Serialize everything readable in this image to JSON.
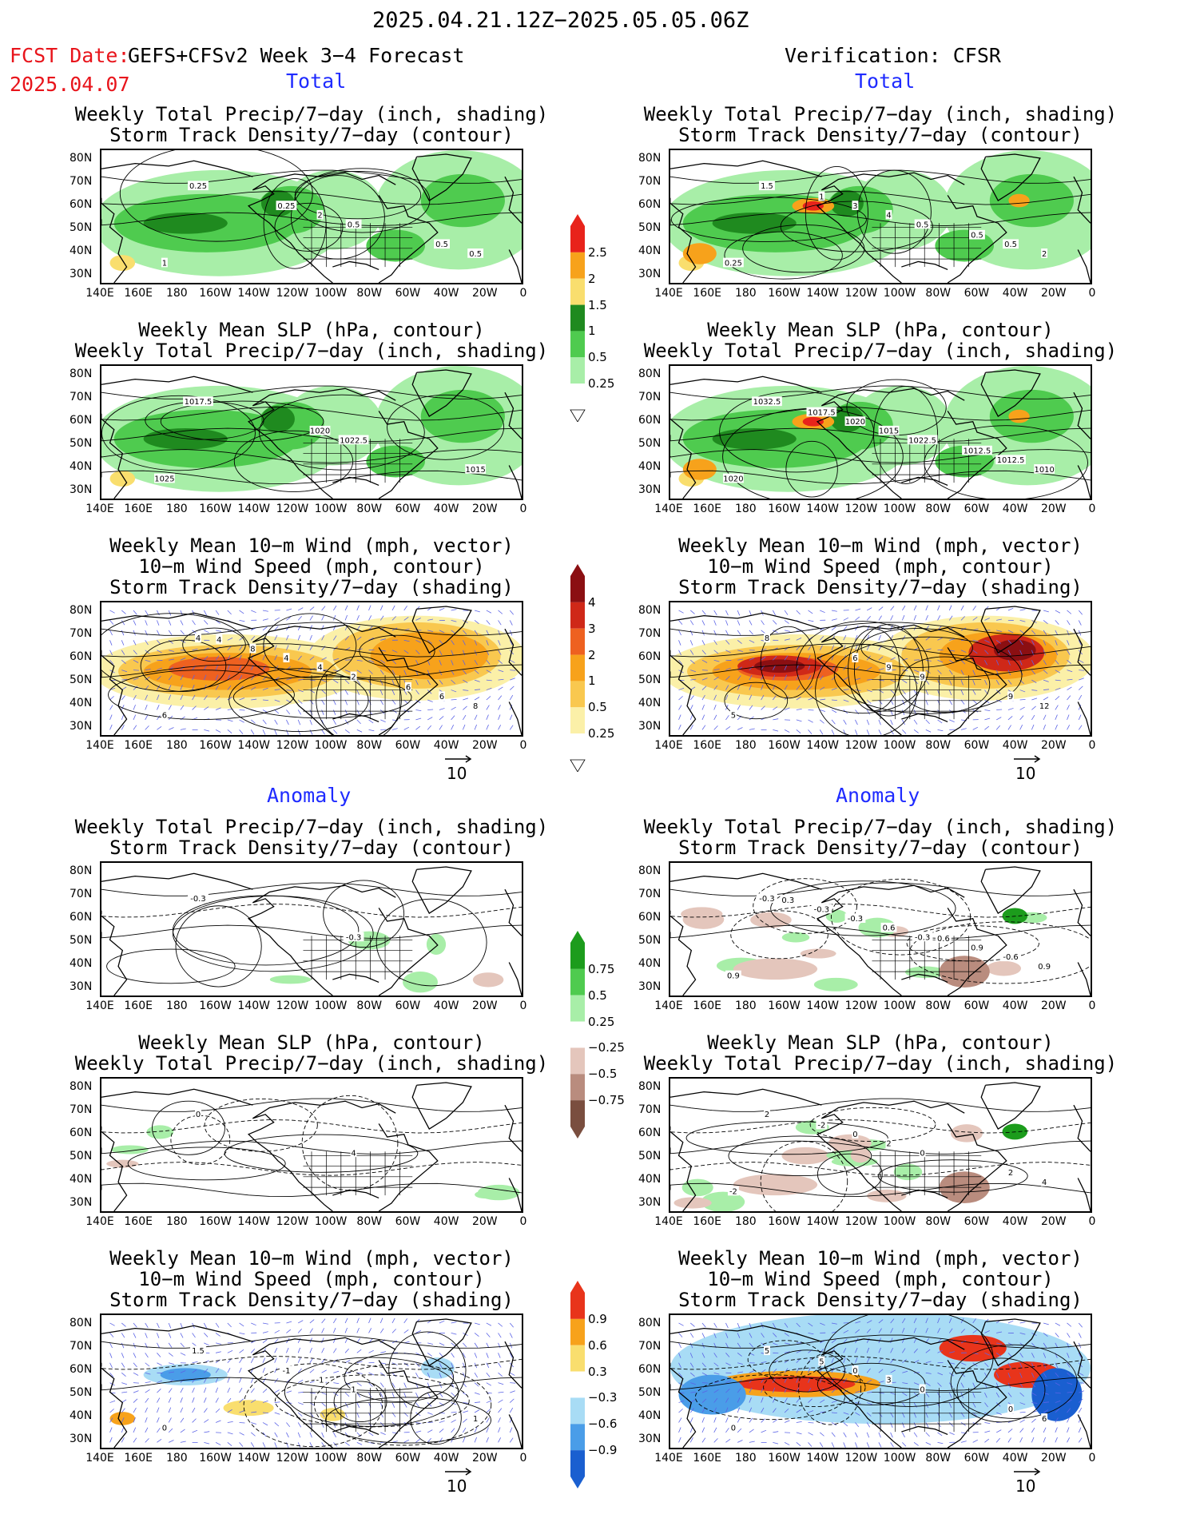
{
  "header": {
    "date_range": "2025.04.21.12Z−2025.05.05.06Z",
    "fcst_date_label": "FCST Date:",
    "fcst_model": "GEFS+CFSv2 Week 3−4 Forecast",
    "fcst_date": "2025.04.07",
    "verification": "Verification: CFSR"
  },
  "sections": {
    "total": "Total",
    "anomaly": "Anomaly"
  },
  "panel_titles": {
    "precip_storm": [
      "Weekly Total Precip/7−day (inch, shading)",
      "Storm Track Density/7−day (contour)"
    ],
    "slp_precip": [
      "Weekly Mean SLP (hPa, contour)",
      "Weekly Total Precip/7−day (inch, shading)"
    ],
    "wind_storm": [
      "Weekly Mean 10−m Wind (mph, vector)",
      "10−m Wind Speed (mph, contour)",
      "Storm Track Density/7−day (shading)"
    ]
  },
  "axes": {
    "lat_ticks": [
      "80N",
      "70N",
      "60N",
      "50N",
      "40N",
      "30N"
    ],
    "lon_ticks": [
      "140E",
      "160E",
      "180",
      "160W",
      "140W",
      "120W",
      "100W",
      "80W",
      "60W",
      "40W",
      "20W",
      "0"
    ]
  },
  "vector_reference": "10",
  "colorbars": {
    "total_precip": {
      "labels": [
        "2.5",
        "2",
        "1.5",
        "1",
        "0.5",
        "0.25"
      ],
      "colors": [
        "#e8231b",
        "#f7a21b",
        "#f9de6e",
        "#1f8a1f",
        "#4fcb4f",
        "#a8eea8",
        "#ffffff"
      ]
    },
    "total_storm": {
      "labels": [
        "4",
        "3",
        "2",
        "1",
        "0.5",
        "0.25"
      ],
      "colors": [
        "#8b0f12",
        "#cf2818",
        "#ee6120",
        "#f7a21b",
        "#f9c84f",
        "#fbf0a8",
        "#ffffff"
      ]
    },
    "anom_precip": {
      "labels": [
        "0.75",
        "0.5",
        "0.25",
        "−0.25",
        "−0.5",
        "−0.75"
      ],
      "colors": [
        "#1c9c1c",
        "#4fcb4f",
        "#a8eea8",
        "#ffffff",
        "#e4c6bc",
        "#b98c7e",
        "#7a4e3f"
      ]
    },
    "anom_storm": {
      "labels": [
        "0.9",
        "0.6",
        "0.3",
        "−0.3",
        "−0.6",
        "−0.9"
      ],
      "colors": [
        "#e8341b",
        "#f7a21b",
        "#f9de6e",
        "#ffffff",
        "#a8dcf5",
        "#4a9de8",
        "#1a5fd0"
      ]
    }
  },
  "contour_labels": {
    "fcst_total_precip": [
      "0.25",
      "0.5",
      "1",
      "2",
      "0.5",
      "0.25",
      "0.5"
    ],
    "cfsr_total_precip": [
      "1.5",
      "0.5",
      "0.25",
      "4",
      "2",
      "3",
      "0.5",
      "1",
      "0.5"
    ],
    "fcst_total_slp": [
      "1017.5",
      "1022.5",
      "1025",
      "1020",
      "1015"
    ],
    "cfsr_total_slp": [
      "1032.5",
      "1022.5",
      "1020",
      "1015",
      "1010",
      "1020",
      "1012.5",
      "1017.5",
      "1012.5"
    ],
    "fcst_total_wind": [
      "4",
      "2",
      "6",
      "4",
      "8",
      "4",
      "6",
      "8",
      "6",
      "4"
    ],
    "cfsr_total_wind": [
      "8",
      "9",
      "5",
      "9",
      "12",
      "6",
      "9"
    ],
    "fcst_anom_precip": [
      "-0.3",
      "-0.3"
    ],
    "cfsr_anom_precip": [
      "-0.3",
      "-0.3",
      "0.9",
      "0.6",
      "0.9",
      "-0.3",
      "-0.6",
      "-0.3",
      "0.9",
      "0.3",
      "0.6"
    ],
    "fcst_anom_slp": [
      "0",
      "4"
    ],
    "cfsr_anom_slp": [
      "2",
      "0",
      "-2",
      "2",
      "4",
      "0",
      "2",
      "-2"
    ],
    "fcst_anom_wind": [
      "1.5",
      "1",
      "0",
      "-1",
      "1",
      "-1"
    ],
    "cfsr_anom_wind": [
      "5",
      "0",
      "0",
      "3",
      "6",
      "0",
      "0",
      "5"
    ]
  }
}
